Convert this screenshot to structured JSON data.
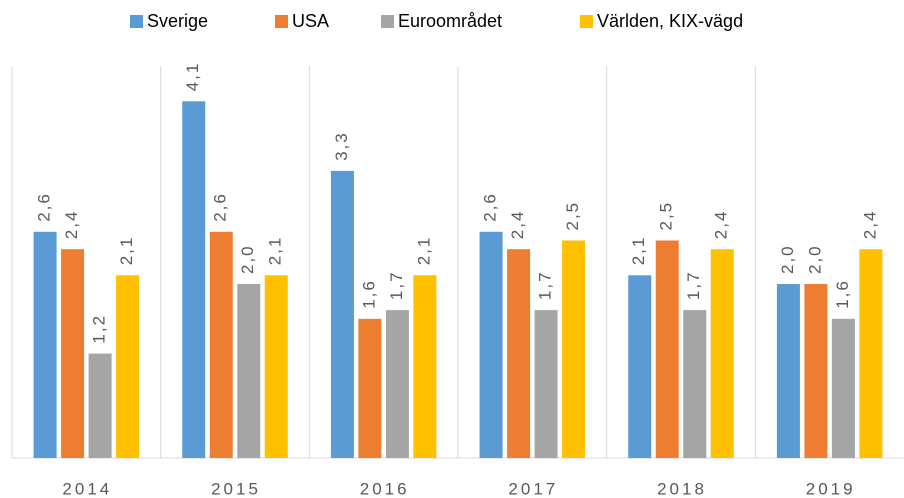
{
  "chart_data": {
    "type": "bar",
    "categories": [
      "2014",
      "2015",
      "2016",
      "2017",
      "2018",
      "2019"
    ],
    "series": [
      {
        "name": "Sverige",
        "color": "#5b9bd5",
        "values": [
          2.6,
          4.1,
          3.3,
          2.6,
          2.1,
          2.0
        ],
        "value_labels": [
          "2,6",
          "4,1",
          "3,3",
          "2,6",
          "2,1",
          "2,0"
        ]
      },
      {
        "name": "USA",
        "color": "#ed7d31",
        "values": [
          2.4,
          2.6,
          1.6,
          2.4,
          2.5,
          2.0
        ],
        "value_labels": [
          "2,4",
          "2,6",
          "1,6",
          "2,4",
          "2,5",
          "2,0"
        ]
      },
      {
        "name": "Euroområdet",
        "color": "#a5a5a5",
        "values": [
          1.2,
          2.0,
          1.7,
          1.7,
          1.7,
          1.6
        ],
        "value_labels": [
          "1,2",
          "2,0",
          "1,7",
          "1,7",
          "1,7",
          "1,6"
        ]
      },
      {
        "name": "Världen, KIX-vägd",
        "color": "#ffc000",
        "values": [
          2.1,
          2.1,
          2.1,
          2.5,
          2.4,
          2.4
        ],
        "value_labels": [
          "2,1",
          "2,1",
          "2,1",
          "2,5",
          "2,4",
          "2,4"
        ]
      }
    ],
    "legend": "top"
  }
}
